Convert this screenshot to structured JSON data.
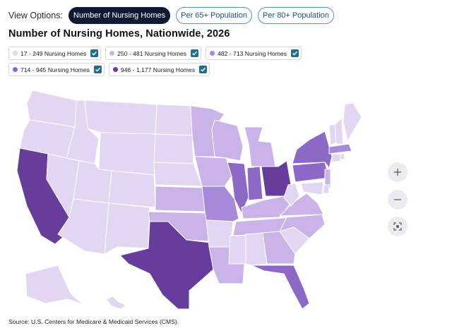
{
  "view_options": {
    "label": "View Options:",
    "buttons": [
      {
        "label": "Number of Nursing Homes",
        "active": true
      },
      {
        "label": "Per 65+ Population",
        "active": false
      },
      {
        "label": "Per 80+ Population",
        "active": false
      }
    ]
  },
  "title": "Number of Nursing Homes, Nationwide, 2026",
  "legend": [
    {
      "label": "17 - 249 Nursing Homes",
      "color": "#e2d6f3",
      "checked": true
    },
    {
      "label": "250 - 481 Nursing Homes",
      "color": "#c9b3e8",
      "checked": true
    },
    {
      "label": "482 - 713 Nursing Homes",
      "color": "#a88bd8",
      "checked": true
    },
    {
      "label": "714 - 945 Nursing Homes",
      "color": "#8c69c6",
      "checked": true
    },
    {
      "label": "946 - 1,177 Nursing Homes",
      "color": "#673d9c",
      "checked": true
    }
  ],
  "zoom_controls": {
    "zoom_in": "plus-icon",
    "zoom_out": "minus-icon",
    "fullscreen": "fullscreen-icon"
  },
  "source": "Source: U.S. Centers for Medicare & Medicaid Services (CMS).",
  "chart_data": {
    "type": "choropleth",
    "bins": [
      "17 - 249",
      "250 - 481",
      "482 - 713",
      "714 - 945",
      "946 - 1,177"
    ],
    "states": {
      "WA": 0,
      "OR": 0,
      "CA": 4,
      "NV": 0,
      "ID": 0,
      "MT": 0,
      "WY": 0,
      "UT": 0,
      "AZ": 0,
      "CO": 0,
      "NM": 0,
      "ND": 0,
      "SD": 0,
      "NE": 0,
      "KS": 1,
      "OK": 1,
      "TX": 4,
      "MN": 1,
      "IA": 1,
      "MO": 2,
      "AR": 0,
      "LA": 1,
      "WI": 1,
      "IL": 3,
      "MI": 1,
      "IN": 3,
      "OH": 4,
      "KY": 1,
      "TN": 1,
      "MS": 0,
      "AL": 0,
      "GA": 1,
      "FL": 3,
      "SC": 0,
      "NC": 1,
      "VA": 1,
      "WV": 0,
      "PA": 3,
      "NY": 3,
      "NJ": 1,
      "DE": 0,
      "MD": 0,
      "ME": 0,
      "VT": 0,
      "NH": 0,
      "MA": 2,
      "CT": 0,
      "RI": 0,
      "AK": 0,
      "HI": 0
    }
  }
}
